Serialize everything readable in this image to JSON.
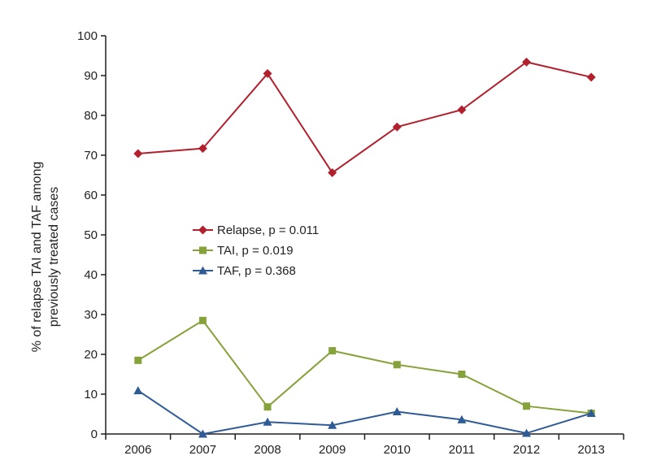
{
  "chart_data": {
    "type": "line",
    "title": "",
    "xlabel": "",
    "ylabel": {
      "line1": "% of relapse TAI and TAF among",
      "line2": "previously treated cases"
    },
    "categories": [
      "2006",
      "2007",
      "2008",
      "2009",
      "2010",
      "2011",
      "2012",
      "2013"
    ],
    "ylim": [
      0,
      100
    ],
    "yticks": [
      0,
      10,
      20,
      30,
      40,
      50,
      60,
      70,
      80,
      90,
      100
    ],
    "grid": false,
    "legend_position": "center-left",
    "series": [
      {
        "name": "Relapse, p = 0.011",
        "values": [
          70.4,
          71.7,
          90.5,
          65.6,
          77.1,
          81.4,
          93.4,
          89.6
        ],
        "color": "#b2202e",
        "marker": "diamond"
      },
      {
        "name": "TAI, p =  0.019",
        "values": [
          18.5,
          28.5,
          6.8,
          20.9,
          17.4,
          15.0,
          7.0,
          5.2
        ],
        "color": "#86a23a",
        "marker": "square"
      },
      {
        "name": "TAF, p = 0.368",
        "values": [
          10.9,
          0.0,
          3.0,
          2.2,
          5.6,
          3.6,
          0.2,
          5.2
        ],
        "color": "#2e5b96",
        "marker": "triangle"
      }
    ]
  }
}
